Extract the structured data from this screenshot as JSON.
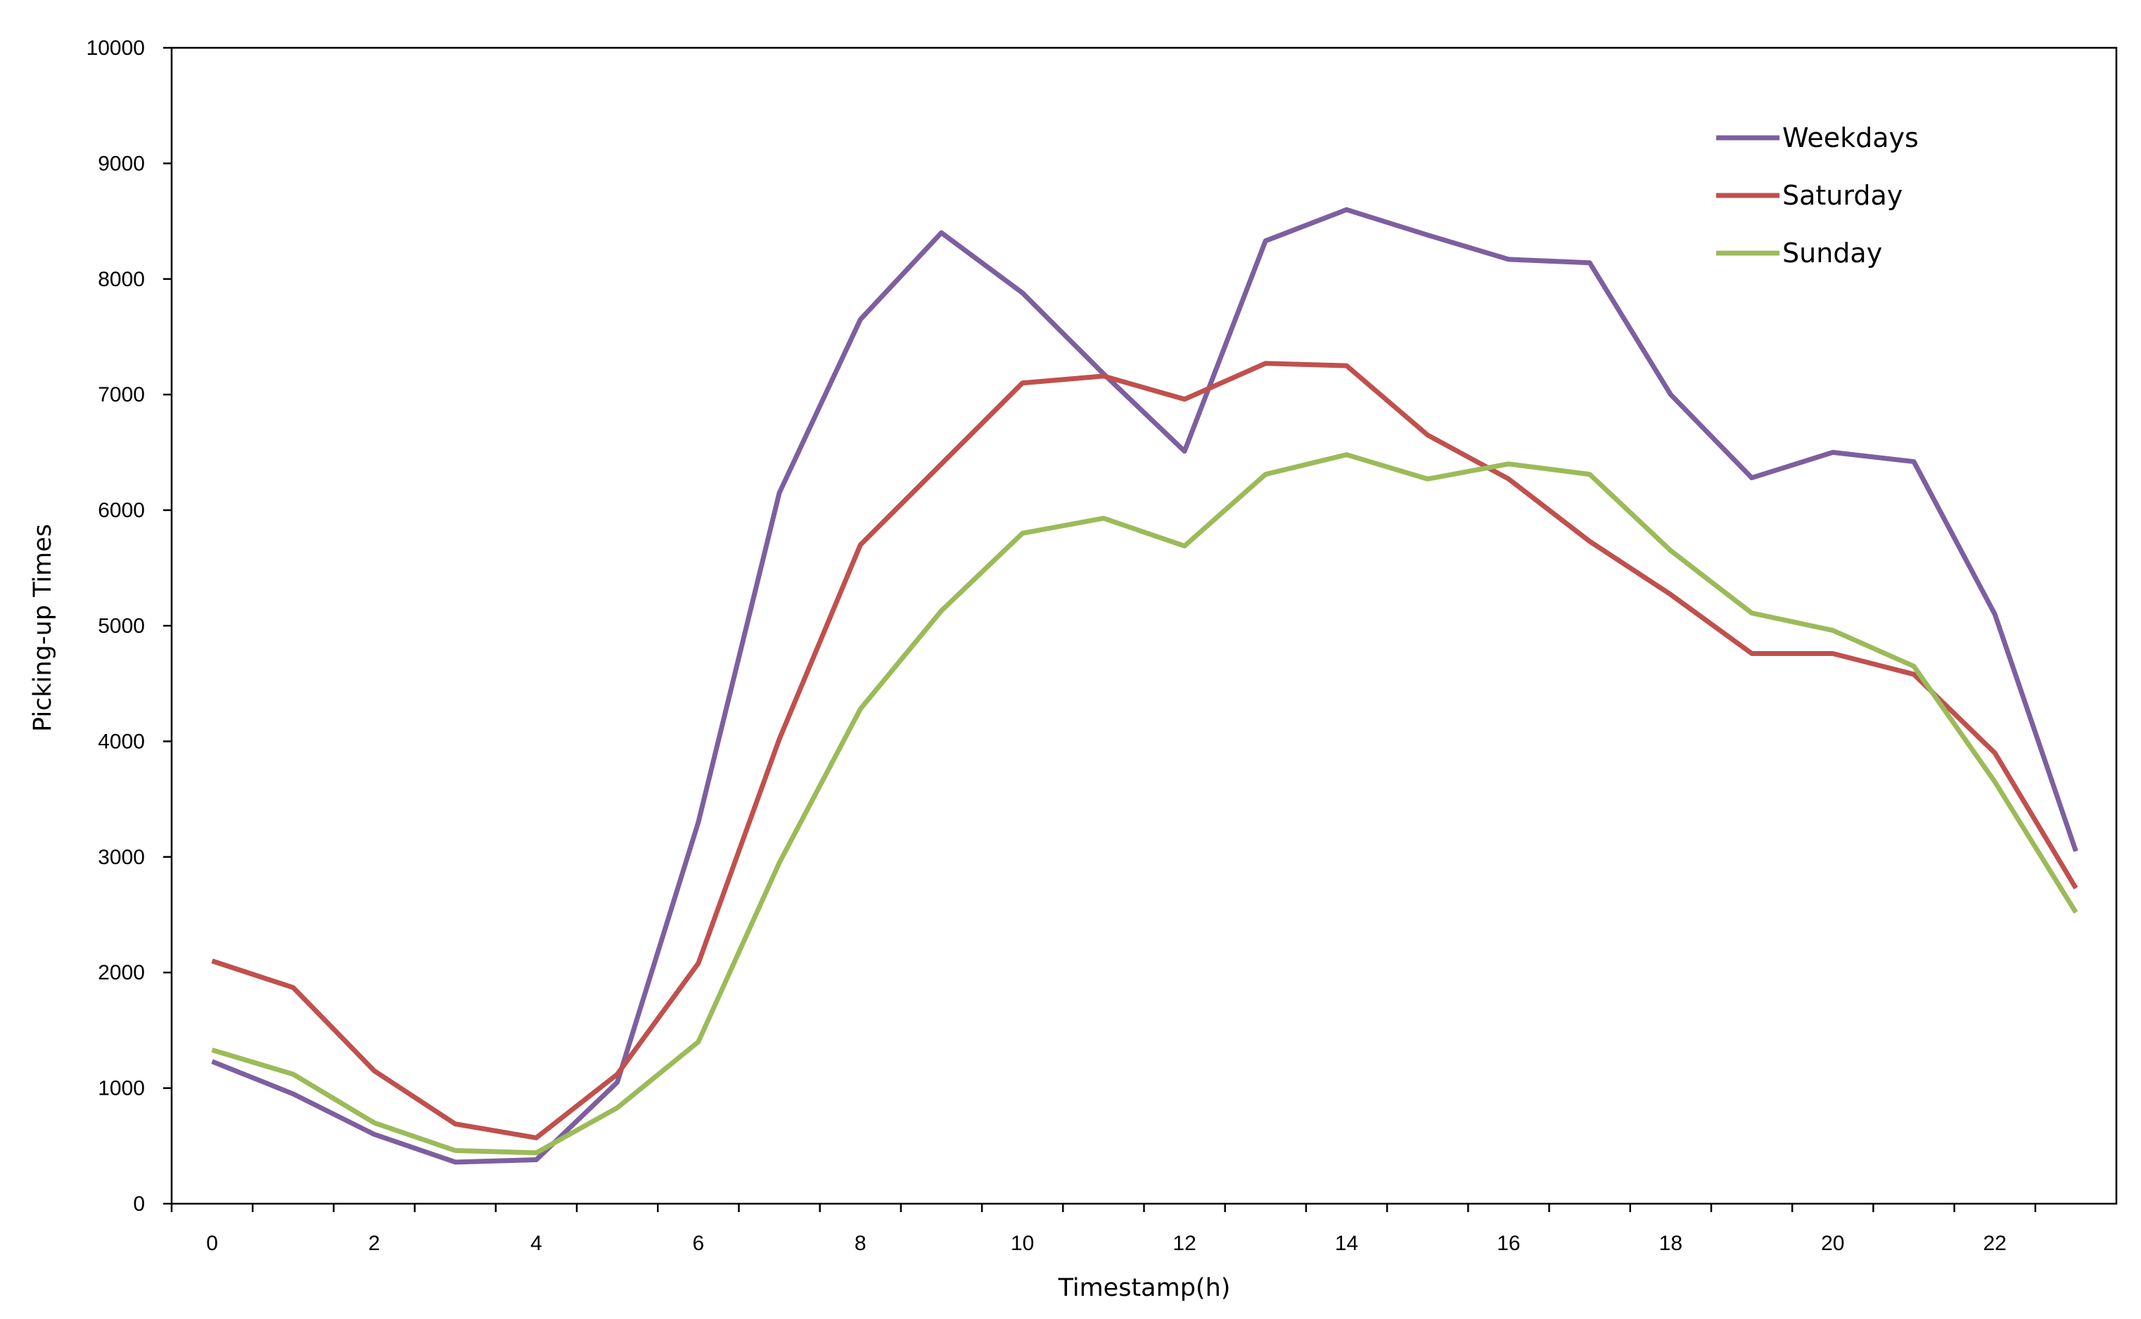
{
  "chart_data": {
    "type": "line",
    "title": "",
    "xlabel": "Timestamp(h)",
    "ylabel": "Picking-up Times",
    "x": [
      0,
      1,
      2,
      3,
      4,
      5,
      6,
      7,
      8,
      9,
      10,
      11,
      12,
      13,
      14,
      15,
      16,
      17,
      18,
      19,
      20,
      21,
      22,
      23
    ],
    "xlim": [
      -0.5,
      23.5
    ],
    "xticks": [
      0,
      2,
      4,
      6,
      8,
      10,
      12,
      14,
      16,
      18,
      20,
      22
    ],
    "ylim": [
      0,
      10000
    ],
    "yticks": [
      0,
      1000,
      2000,
      3000,
      4000,
      5000,
      6000,
      7000,
      8000,
      9000,
      10000
    ],
    "grid": false,
    "legend_position": "top-right",
    "series": [
      {
        "name": "Weekdays",
        "color": "#7d5fa0",
        "values": [
          1230,
          950,
          600,
          360,
          380,
          1050,
          3300,
          6150,
          7650,
          8400,
          7880,
          7180,
          6510,
          8330,
          8600,
          8380,
          8170,
          8140,
          7000,
          6280,
          6500,
          6420,
          5100,
          3050
        ]
      },
      {
        "name": "Saturday",
        "color": "#c0504d",
        "values": [
          2100,
          1870,
          1150,
          690,
          570,
          1120,
          2080,
          4020,
          5700,
          6400,
          7100,
          7160,
          6960,
          7270,
          7250,
          6650,
          6270,
          5730,
          5270,
          4760,
          4760,
          4580,
          3900,
          2730
        ]
      },
      {
        "name": "Sunday",
        "color": "#9bbb59",
        "values": [
          1330,
          1120,
          700,
          460,
          440,
          830,
          1400,
          2950,
          4280,
          5130,
          5800,
          5930,
          5690,
          6310,
          6480,
          6270,
          6400,
          6310,
          5650,
          5110,
          4960,
          4650,
          3650,
          2520
        ]
      }
    ]
  }
}
